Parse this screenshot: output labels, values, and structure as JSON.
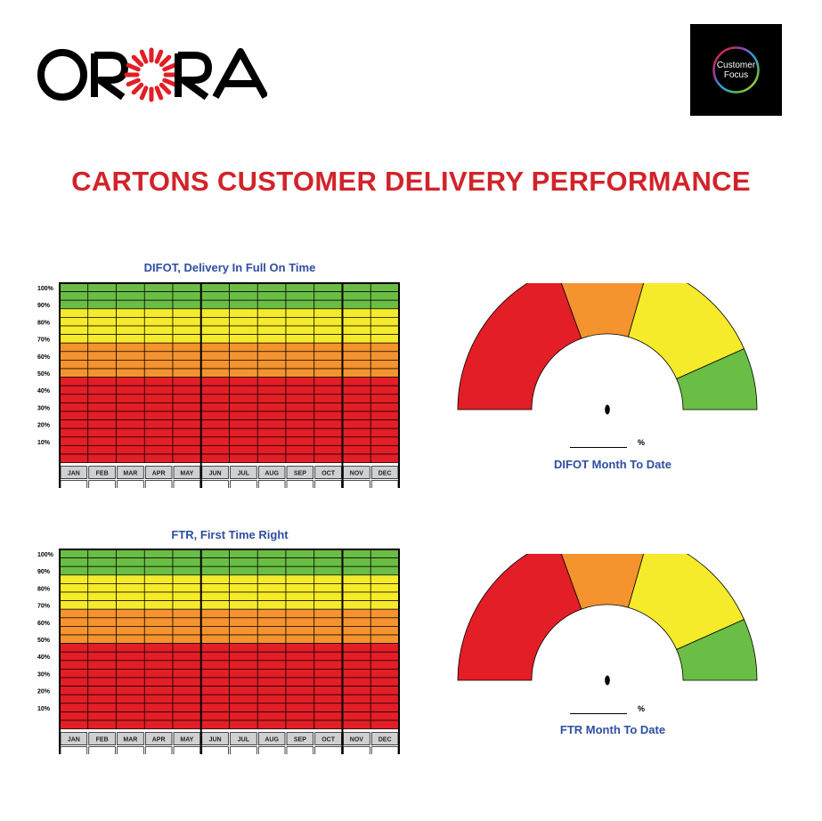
{
  "brand": {
    "logo_text": "ORORA",
    "badge_line1": "Customer",
    "badge_line2": "Focus"
  },
  "title": "CARTONS CUSTOMER DELIVERY PERFORMANCE",
  "colors": {
    "title_red": "#d2232a",
    "label_blue": "#2e4ea0",
    "red": "#e31e26",
    "orange": "#f5932f",
    "yellow": "#f6eb2a",
    "green": "#6abd45",
    "month_header_bg": "#cfd0d2"
  },
  "months": [
    "JAN",
    "FEB",
    "MAR",
    "APR",
    "MAY",
    "JUN",
    "JUL",
    "AUG",
    "SEP",
    "OCT",
    "NOV",
    "DEC"
  ],
  "y_ticks": [
    "100%",
    "90%",
    "80%",
    "70%",
    "60%",
    "50%",
    "40%",
    "30%",
    "20%",
    "10%"
  ],
  "charts": [
    {
      "id": "difot",
      "title": "DIFOT, Delivery In Full On Time",
      "gauge_caption": "DIFOT Month To Date",
      "percent_sign": "%"
    },
    {
      "id": "ftr",
      "title": "FTR, First Time Right",
      "gauge_caption": "FTR Month To Date",
      "percent_sign": "%"
    }
  ]
}
